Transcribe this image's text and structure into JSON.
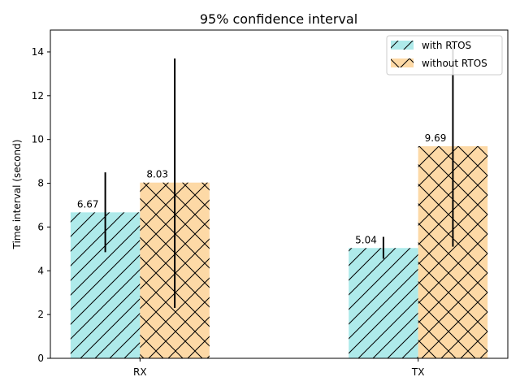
{
  "chart_data": {
    "type": "bar",
    "title": "95% confidence interval",
    "xlabel": "",
    "ylabel": "Time interval (second)",
    "categories": [
      "RX",
      "TX"
    ],
    "ylim": [
      0,
      15
    ],
    "yticks": [
      0,
      2,
      4,
      6,
      8,
      10,
      12,
      14
    ],
    "grid": false,
    "legend_position": "top-right",
    "series": [
      {
        "name": "with RTOS",
        "values": [
          6.67,
          5.04
        ],
        "value_labels": [
          "6.67",
          "5.04"
        ],
        "error_low": [
          4.85,
          4.55
        ],
        "error_high": [
          8.5,
          5.55
        ],
        "color": "#aeeaea",
        "hatch": "diagonal"
      },
      {
        "name": "without RTOS",
        "values": [
          8.03,
          9.69
        ],
        "value_labels": [
          "8.03",
          "9.69"
        ],
        "error_low": [
          2.3,
          5.1
        ],
        "error_high": [
          13.7,
          14.3
        ],
        "color": "#fdd9a6",
        "hatch": "crosshatch"
      }
    ]
  }
}
